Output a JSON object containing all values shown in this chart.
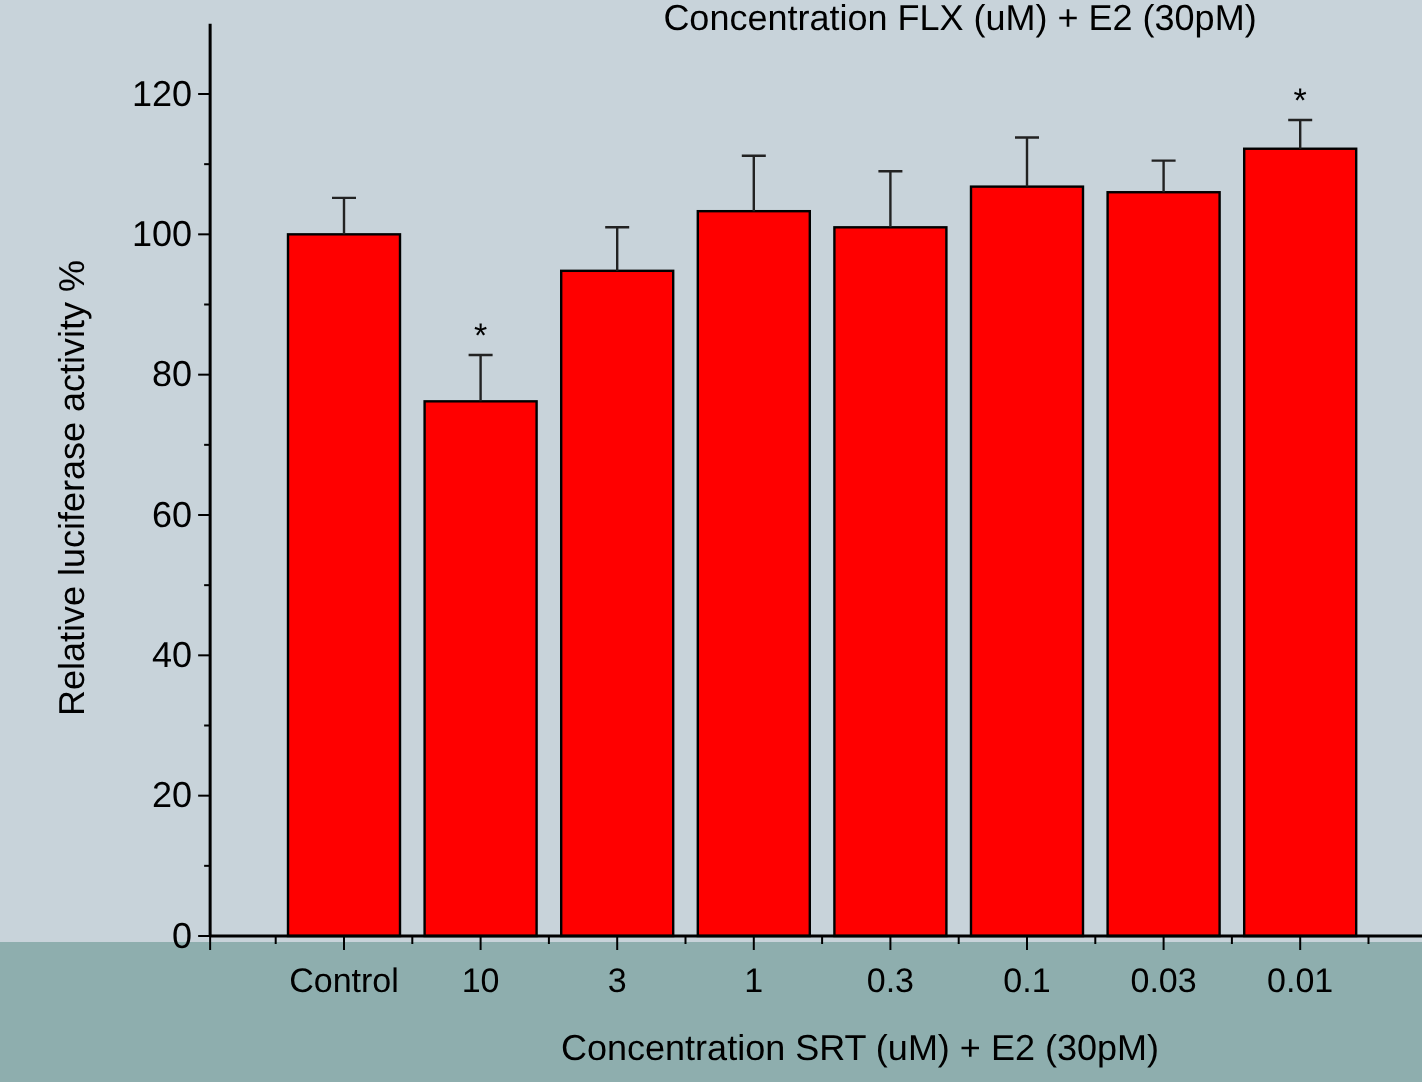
{
  "chart_data": {
    "type": "bar",
    "title": "Concentration FLX (uM) + E2 (30pM)",
    "xlabel": "Concentration SRT (uM) + E2 (30pM)",
    "ylabel": "Relative luciferase activity %",
    "categories": [
      "Control",
      "10",
      "3",
      "1",
      "0.3",
      "0.1",
      "0.03",
      "0.01"
    ],
    "values": [
      100,
      76.2,
      94.8,
      103.3,
      101,
      106.8,
      106,
      112.2
    ],
    "errors": [
      [
        100,
        105.2
      ],
      [
        76.2,
        82.8
      ],
      [
        94.8,
        101
      ],
      [
        103.3,
        111.2
      ],
      [
        101,
        109
      ],
      [
        106.8,
        113.8
      ],
      [
        106,
        110.5
      ],
      [
        112.2,
        116.3
      ]
    ],
    "color": "#ff0000",
    "ylim": [
      0,
      130
    ],
    "yticks": [
      0,
      20,
      40,
      60,
      80,
      100,
      120
    ],
    "annotations": [
      {
        "text": "*",
        "x": "10",
        "y": 82.8
      },
      {
        "text": "*",
        "x": "0.01",
        "y": 116.3
      }
    ],
    "grid": false
  }
}
